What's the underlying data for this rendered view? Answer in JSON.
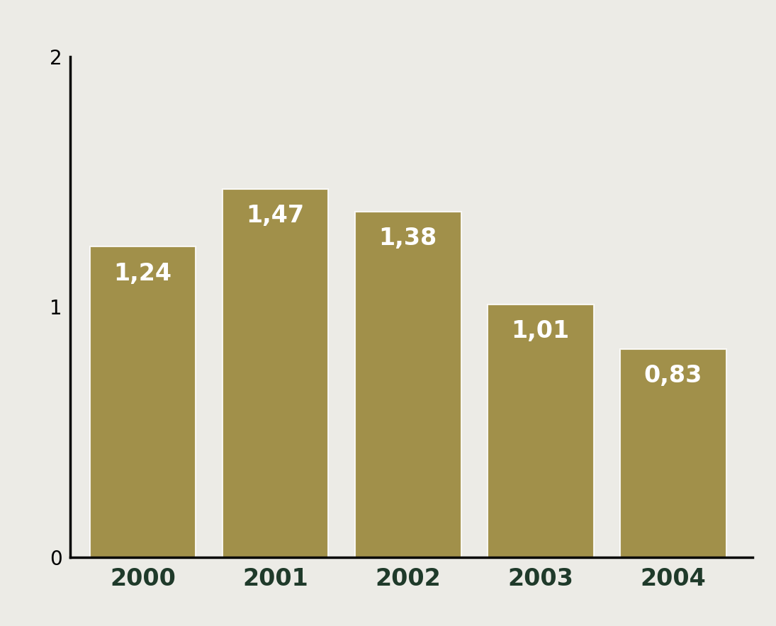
{
  "chart_data": {
    "type": "bar",
    "categories": [
      "2000",
      "2001",
      "2002",
      "2003",
      "2004"
    ],
    "values": [
      1.24,
      1.47,
      1.38,
      1.01,
      0.83
    ],
    "value_labels": [
      "1,24",
      "1,47",
      "1,38",
      "1,01",
      "0,83"
    ],
    "color": "#94802f",
    "ylim": [
      0,
      2
    ],
    "yticks": [
      0,
      1,
      2
    ],
    "grid": false,
    "data_labels": true
  }
}
